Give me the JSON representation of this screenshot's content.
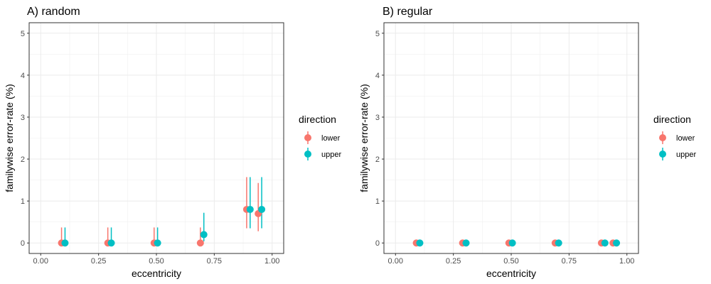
{
  "chart_data": [
    {
      "type": "scatter",
      "title": "A) random",
      "xlabel": "eccentricity",
      "ylabel": "familywise error-rate (%)",
      "xlim": [
        -0.05,
        1.05
      ],
      "ylim": [
        -0.25,
        5.25
      ],
      "xticks": [
        0,
        0.25,
        0.5,
        0.75,
        1
      ],
      "xtick_labels": [
        "0.00",
        "0.25",
        "0.50",
        "0.75",
        "1.00"
      ],
      "yticks": [
        0,
        1,
        2,
        3,
        4,
        5
      ],
      "ytick_labels": [
        "0",
        "1",
        "2",
        "3",
        "4",
        "5"
      ],
      "grid": true,
      "legend": {
        "title": "direction",
        "position": "right"
      },
      "series": [
        {
          "name": "lower",
          "color": "#F8766D",
          "points": [
            {
              "x": 0.09,
              "y": 0,
              "ymin": 0,
              "ymax": 0.37
            },
            {
              "x": 0.29,
              "y": 0,
              "ymin": 0,
              "ymax": 0.37
            },
            {
              "x": 0.49,
              "y": 0,
              "ymin": 0,
              "ymax": 0.37
            },
            {
              "x": 0.69,
              "y": 0,
              "ymin": 0,
              "ymax": 0.37
            },
            {
              "x": 0.89,
              "y": 0.8,
              "ymin": 0.35,
              "ymax": 1.57
            },
            {
              "x": 0.94,
              "y": 0.7,
              "ymin": 0.28,
              "ymax": 1.43
            }
          ]
        },
        {
          "name": "upper",
          "color": "#00BFC4",
          "points": [
            {
              "x": 0.105,
              "y": 0,
              "ymin": 0,
              "ymax": 0.37
            },
            {
              "x": 0.305,
              "y": 0,
              "ymin": 0,
              "ymax": 0.37
            },
            {
              "x": 0.505,
              "y": 0,
              "ymin": 0,
              "ymax": 0.37
            },
            {
              "x": 0.705,
              "y": 0.2,
              "ymin": 0.04,
              "ymax": 0.72
            },
            {
              "x": 0.905,
              "y": 0.8,
              "ymin": 0.35,
              "ymax": 1.57
            },
            {
              "x": 0.955,
              "y": 0.8,
              "ymin": 0.35,
              "ymax": 1.57
            }
          ]
        }
      ]
    },
    {
      "type": "scatter",
      "title": "B) regular",
      "xlabel": "eccentricity",
      "ylabel": "familywise error-rate (%)",
      "xlim": [
        -0.05,
        1.05
      ],
      "ylim": [
        -0.25,
        5.25
      ],
      "xticks": [
        0,
        0.25,
        0.5,
        0.75,
        1
      ],
      "xtick_labels": [
        "0.00",
        "0.25",
        "0.50",
        "0.75",
        "1.00"
      ],
      "yticks": [
        0,
        1,
        2,
        3,
        4,
        5
      ],
      "ytick_labels": [
        "0",
        "1",
        "2",
        "3",
        "4",
        "5"
      ],
      "grid": true,
      "legend": {
        "title": "direction",
        "position": "right"
      },
      "series": [
        {
          "name": "lower",
          "color": "#F8766D",
          "points": [
            {
              "x": 0.09,
              "y": 0
            },
            {
              "x": 0.29,
              "y": 0
            },
            {
              "x": 0.49,
              "y": 0
            },
            {
              "x": 0.69,
              "y": 0
            },
            {
              "x": 0.89,
              "y": 0
            },
            {
              "x": 0.94,
              "y": 0
            }
          ]
        },
        {
          "name": "upper",
          "color": "#00BFC4",
          "points": [
            {
              "x": 0.105,
              "y": 0
            },
            {
              "x": 0.305,
              "y": 0
            },
            {
              "x": 0.505,
              "y": 0
            },
            {
              "x": 0.705,
              "y": 0
            },
            {
              "x": 0.905,
              "y": 0
            },
            {
              "x": 0.955,
              "y": 0
            }
          ]
        }
      ]
    }
  ]
}
